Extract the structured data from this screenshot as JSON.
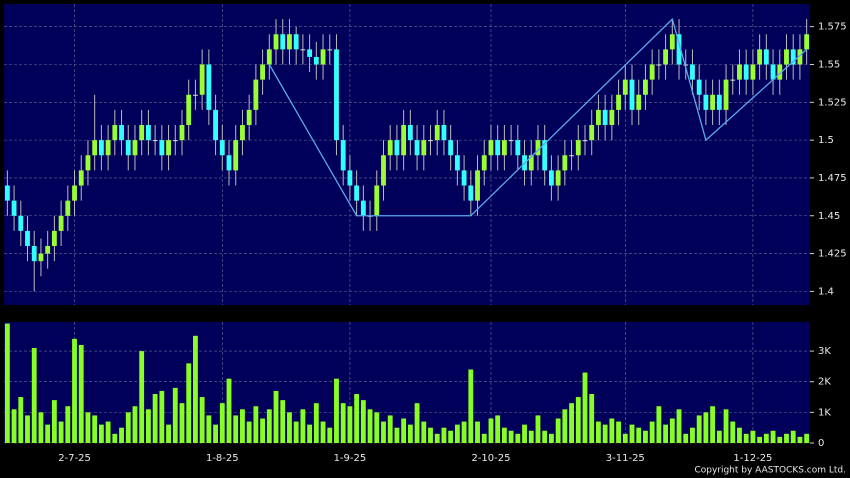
{
  "chart_data": {
    "type": "candlestick",
    "categories": [
      null,
      null,
      null,
      null,
      null,
      null,
      null,
      null,
      null,
      null,
      "2-7-25",
      null,
      null,
      null,
      null,
      null,
      null,
      null,
      null,
      null,
      null,
      null,
      null,
      null,
      null,
      null,
      null,
      null,
      null,
      null,
      null,
      null,
      "1-8-25",
      null,
      null,
      null,
      null,
      null,
      null,
      null,
      null,
      null,
      null,
      null,
      null,
      null,
      null,
      null,
      null,
      null,
      null,
      "1-9-25",
      null,
      null,
      null,
      null,
      null,
      null,
      null,
      null,
      null,
      null,
      null,
      null,
      null,
      null,
      null,
      null,
      null,
      null,
      null,
      null,
      "2-10-25",
      null,
      null,
      null,
      null,
      null,
      null,
      null,
      null,
      null,
      null,
      null,
      null,
      null,
      null,
      null,
      null,
      null,
      null,
      null,
      "3-11-25",
      null,
      null,
      null,
      null,
      null,
      null,
      null,
      null,
      null,
      null,
      null,
      null,
      null,
      null,
      null,
      null,
      null,
      null,
      "1-12-25",
      null,
      null,
      null,
      null,
      null,
      null,
      null,
      null
    ],
    "open": [
      1.47,
      1.46,
      1.45,
      1.44,
      1.43,
      1.42,
      1.425,
      1.43,
      1.44,
      1.45,
      1.46,
      1.47,
      1.48,
      1.49,
      1.5,
      1.49,
      1.5,
      1.51,
      1.5,
      1.49,
      1.5,
      1.51,
      1.5,
      1.5,
      1.49,
      1.5,
      1.5,
      1.51,
      1.53,
      1.53,
      1.55,
      1.52,
      1.5,
      1.49,
      1.48,
      1.5,
      1.51,
      1.52,
      1.54,
      1.55,
      1.56,
      1.57,
      1.56,
      1.57,
      1.56,
      1.56,
      1.555,
      1.55,
      1.56,
      1.56,
      1.5,
      1.48,
      1.47,
      1.46,
      1.45,
      1.45,
      1.47,
      1.49,
      1.5,
      1.49,
      1.51,
      1.5,
      1.49,
      1.5,
      1.5,
      1.51,
      1.5,
      1.49,
      1.48,
      1.47,
      1.46,
      1.48,
      1.49,
      1.5,
      1.49,
      1.5,
      1.5,
      1.49,
      1.48,
      1.49,
      1.5,
      1.48,
      1.47,
      1.48,
      1.49,
      1.49,
      1.5,
      1.5,
      1.51,
      1.52,
      1.51,
      1.52,
      1.53,
      1.54,
      1.52,
      1.53,
      1.54,
      1.55,
      1.55,
      1.56,
      1.57,
      1.55,
      1.55,
      1.54,
      1.53,
      1.52,
      1.53,
      1.52,
      1.54,
      1.54,
      1.55,
      1.54,
      1.55,
      1.56,
      1.55,
      1.54,
      1.55,
      1.56,
      1.55,
      1.56
    ],
    "high": [
      1.48,
      1.47,
      1.46,
      1.45,
      1.44,
      1.435,
      1.44,
      1.45,
      1.46,
      1.47,
      1.48,
      1.49,
      1.5,
      1.53,
      1.51,
      1.51,
      1.52,
      1.52,
      1.51,
      1.51,
      1.52,
      1.52,
      1.51,
      1.51,
      1.51,
      1.51,
      1.52,
      1.54,
      1.54,
      1.56,
      1.56,
      1.53,
      1.51,
      1.5,
      1.51,
      1.52,
      1.53,
      1.55,
      1.56,
      1.57,
      1.58,
      1.58,
      1.58,
      1.575,
      1.57,
      1.57,
      1.565,
      1.57,
      1.57,
      1.57,
      1.51,
      1.49,
      1.48,
      1.47,
      1.46,
      1.48,
      1.5,
      1.51,
      1.51,
      1.52,
      1.52,
      1.51,
      1.51,
      1.51,
      1.52,
      1.52,
      1.51,
      1.5,
      1.49,
      1.48,
      1.49,
      1.5,
      1.51,
      1.51,
      1.51,
      1.51,
      1.51,
      1.5,
      1.5,
      1.51,
      1.51,
      1.49,
      1.49,
      1.5,
      1.5,
      1.51,
      1.51,
      1.52,
      1.53,
      1.53,
      1.53,
      1.54,
      1.55,
      1.55,
      1.54,
      1.55,
      1.56,
      1.56,
      1.57,
      1.58,
      1.58,
      1.56,
      1.56,
      1.55,
      1.54,
      1.54,
      1.54,
      1.55,
      1.55,
      1.56,
      1.56,
      1.56,
      1.57,
      1.57,
      1.56,
      1.56,
      1.57,
      1.57,
      1.57,
      1.58
    ],
    "low": [
      1.45,
      1.44,
      1.43,
      1.42,
      1.4,
      1.41,
      1.415,
      1.42,
      1.43,
      1.44,
      1.45,
      1.46,
      1.47,
      1.48,
      1.48,
      1.48,
      1.49,
      1.49,
      1.48,
      1.48,
      1.49,
      1.49,
      1.49,
      1.48,
      1.48,
      1.49,
      1.49,
      1.5,
      1.52,
      1.52,
      1.51,
      1.49,
      1.48,
      1.47,
      1.47,
      1.49,
      1.5,
      1.51,
      1.53,
      1.54,
      1.55,
      1.55,
      1.55,
      1.55,
      1.55,
      1.545,
      1.54,
      1.54,
      1.55,
      1.49,
      1.47,
      1.46,
      1.45,
      1.44,
      1.44,
      1.44,
      1.46,
      1.48,
      1.48,
      1.48,
      1.49,
      1.48,
      1.48,
      1.49,
      1.49,
      1.49,
      1.48,
      1.47,
      1.46,
      1.45,
      1.45,
      1.47,
      1.48,
      1.48,
      1.48,
      1.49,
      1.48,
      1.47,
      1.47,
      1.48,
      1.47,
      1.46,
      1.46,
      1.47,
      1.48,
      1.48,
      1.49,
      1.49,
      1.5,
      1.5,
      1.5,
      1.51,
      1.52,
      1.51,
      1.51,
      1.52,
      1.53,
      1.54,
      1.54,
      1.55,
      1.54,
      1.54,
      1.53,
      1.52,
      1.51,
      1.51,
      1.51,
      1.51,
      1.53,
      1.53,
      1.53,
      1.53,
      1.54,
      1.54,
      1.53,
      1.53,
      1.54,
      1.54,
      1.54,
      1.55
    ],
    "close": [
      1.46,
      1.45,
      1.44,
      1.43,
      1.42,
      1.425,
      1.43,
      1.44,
      1.45,
      1.46,
      1.47,
      1.48,
      1.49,
      1.5,
      1.49,
      1.5,
      1.51,
      1.5,
      1.49,
      1.5,
      1.51,
      1.5,
      1.5,
      1.49,
      1.5,
      1.5,
      1.51,
      1.53,
      1.53,
      1.55,
      1.52,
      1.5,
      1.49,
      1.48,
      1.5,
      1.51,
      1.52,
      1.54,
      1.55,
      1.56,
      1.57,
      1.56,
      1.57,
      1.56,
      1.56,
      1.555,
      1.55,
      1.56,
      1.56,
      1.5,
      1.48,
      1.47,
      1.46,
      1.45,
      1.45,
      1.47,
      1.49,
      1.5,
      1.49,
      1.51,
      1.5,
      1.49,
      1.5,
      1.5,
      1.51,
      1.5,
      1.49,
      1.48,
      1.47,
      1.46,
      1.48,
      1.49,
      1.5,
      1.49,
      1.5,
      1.5,
      1.49,
      1.48,
      1.49,
      1.5,
      1.48,
      1.47,
      1.48,
      1.49,
      1.49,
      1.5,
      1.5,
      1.51,
      1.52,
      1.51,
      1.52,
      1.53,
      1.54,
      1.52,
      1.53,
      1.54,
      1.55,
      1.55,
      1.56,
      1.57,
      1.55,
      1.55,
      1.54,
      1.53,
      1.52,
      1.53,
      1.52,
      1.54,
      1.54,
      1.55,
      1.54,
      1.55,
      1.56,
      1.55,
      1.54,
      1.55,
      1.56,
      1.55,
      1.56,
      1.57
    ],
    "volume": [
      3900,
      1100,
      1500,
      900,
      3100,
      1000,
      600,
      1400,
      700,
      1200,
      3400,
      3200,
      1000,
      900,
      600,
      700,
      300,
      500,
      1000,
      1200,
      3000,
      1100,
      1600,
      1700,
      600,
      1800,
      1300,
      2600,
      3500,
      1500,
      900,
      600,
      1300,
      2100,
      900,
      1100,
      700,
      1200,
      800,
      1100,
      1700,
      1400,
      1000,
      700,
      1100,
      600,
      1300,
      700,
      500,
      2100,
      1300,
      1200,
      1600,
      1400,
      1100,
      1000,
      700,
      900,
      500,
      800,
      600,
      1300,
      700,
      500,
      300,
      500,
      400,
      600,
      700,
      2400,
      700,
      300,
      800,
      900,
      500,
      400,
      300,
      600,
      400,
      900,
      400,
      300,
      800,
      1100,
      1300,
      1500,
      2300,
      1600,
      700,
      600,
      800,
      700,
      300,
      600,
      500,
      400,
      700,
      1200,
      600,
      800,
      1100,
      300,
      500,
      900,
      1000,
      1200,
      400,
      1100,
      700,
      500,
      300,
      400,
      200,
      300,
      400,
      200,
      300,
      400,
      200,
      300
    ],
    "up_color": "#99ff33",
    "down_color": "#33ffff",
    "volume_color": "#88ff22",
    "trend_line": {
      "color": "#5aa8f0",
      "x": [
        39,
        52,
        69,
        99,
        104,
        119
      ],
      "values": [
        1.55,
        1.45,
        1.45,
        1.58,
        1.5,
        1.56
      ]
    },
    "ylim": [
      1.391,
      1.59
    ],
    "yticks": [
      1.4,
      1.425,
      1.45,
      1.475,
      1.5,
      1.525,
      1.55,
      1.575
    ],
    "volume_ylim": [
      0,
      3950
    ],
    "volume_ticks": [
      0,
      {
        "value": 1000,
        "label": "1K"
      },
      {
        "value": 2000,
        "label": "2K"
      },
      {
        "value": 3000,
        "label": "3K"
      }
    ],
    "grid": true,
    "copyright": "Copyright by AASTOCKS.com Ltd."
  }
}
